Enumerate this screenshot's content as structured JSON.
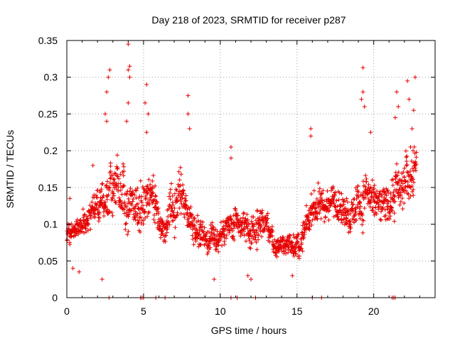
{
  "chart_data": {
    "type": "scatter",
    "title": "Day 218 of 2023, SRMTID for receiver p287",
    "xlabel": "GPS time / hours",
    "ylabel": "SRMTID / TECUs",
    "xlim": [
      0,
      24
    ],
    "ylim": [
      0,
      0.35
    ],
    "xticks": [
      0,
      5,
      10,
      15,
      20
    ],
    "yticks": [
      0,
      0.05,
      0.1,
      0.15,
      0.2,
      0.25,
      0.3,
      0.35
    ],
    "xtick_labels": [
      "0",
      "5",
      "10",
      "15",
      "20"
    ],
    "ytick_labels": [
      "0",
      "0.05",
      "0.1",
      "0.15",
      "0.2",
      "0.25",
      "0.3",
      "0.35"
    ],
    "grid": true,
    "marker": "+",
    "color": "#e60000",
    "envelope": {
      "hours": [
        0,
        0.5,
        1,
        1.5,
        2,
        2.5,
        3,
        3.5,
        4,
        4.5,
        5,
        5.5,
        6,
        6.5,
        7,
        7.5,
        8,
        8.5,
        9,
        9.5,
        10,
        10.5,
        11,
        11.5,
        12,
        12.5,
        13,
        13.5,
        14,
        14.5,
        15,
        15.5,
        16,
        16.5,
        17,
        17.5,
        18,
        18.5,
        19,
        19.5,
        20,
        20.5,
        21,
        21.5,
        22,
        22.5,
        22.8
      ],
      "center": [
        0.09,
        0.085,
        0.095,
        0.11,
        0.125,
        0.13,
        0.15,
        0.145,
        0.14,
        0.12,
        0.13,
        0.145,
        0.11,
        0.1,
        0.12,
        0.14,
        0.11,
        0.1,
        0.085,
        0.08,
        0.085,
        0.09,
        0.095,
        0.1,
        0.085,
        0.1,
        0.09,
        0.075,
        0.07,
        0.075,
        0.075,
        0.09,
        0.12,
        0.13,
        0.13,
        0.135,
        0.12,
        0.11,
        0.13,
        0.15,
        0.13,
        0.12,
        0.13,
        0.15,
        0.16,
        0.17,
        0.19
      ],
      "spread": [
        0.025,
        0.02,
        0.025,
        0.03,
        0.035,
        0.04,
        0.055,
        0.05,
        0.06,
        0.045,
        0.05,
        0.05,
        0.035,
        0.035,
        0.045,
        0.05,
        0.04,
        0.035,
        0.03,
        0.03,
        0.03,
        0.03,
        0.035,
        0.035,
        0.035,
        0.035,
        0.03,
        0.025,
        0.022,
        0.025,
        0.028,
        0.03,
        0.035,
        0.035,
        0.035,
        0.035,
        0.035,
        0.035,
        0.045,
        0.05,
        0.04,
        0.04,
        0.045,
        0.05,
        0.05,
        0.05,
        0.045
      ]
    },
    "spikes": [
      {
        "x": 0.2,
        "y": 0.135
      },
      {
        "x": 1.7,
        "y": 0.18
      },
      {
        "x": 2.3,
        "y": 0.025
      },
      {
        "x": 2.8,
        "y": 0.31
      },
      {
        "x": 2.7,
        "y": 0.3
      },
      {
        "x": 2.6,
        "y": 0.28
      },
      {
        "x": 2.5,
        "y": 0.25
      },
      {
        "x": 2.6,
        "y": 0.24
      },
      {
        "x": 4.0,
        "y": 0.345
      },
      {
        "x": 4.1,
        "y": 0.315
      },
      {
        "x": 4.0,
        "y": 0.31
      },
      {
        "x": 4.1,
        "y": 0.3
      },
      {
        "x": 4.0,
        "y": 0.265
      },
      {
        "x": 3.9,
        "y": 0.24
      },
      {
        "x": 5.2,
        "y": 0.29
      },
      {
        "x": 5.1,
        "y": 0.265
      },
      {
        "x": 5.3,
        "y": 0.25
      },
      {
        "x": 5.2,
        "y": 0.225
      },
      {
        "x": 7.9,
        "y": 0.275
      },
      {
        "x": 7.9,
        "y": 0.25
      },
      {
        "x": 8.0,
        "y": 0.23
      },
      {
        "x": 10.7,
        "y": 0.205
      },
      {
        "x": 10.7,
        "y": 0.19
      },
      {
        "x": 15.9,
        "y": 0.23
      },
      {
        "x": 15.9,
        "y": 0.22
      },
      {
        "x": 19.3,
        "y": 0.313
      },
      {
        "x": 19.3,
        "y": 0.28
      },
      {
        "x": 19.2,
        "y": 0.27
      },
      {
        "x": 19.4,
        "y": 0.26
      },
      {
        "x": 19.8,
        "y": 0.225
      },
      {
        "x": 21.4,
        "y": 0.245
      },
      {
        "x": 21.5,
        "y": 0.28
      },
      {
        "x": 21.6,
        "y": 0.26
      },
      {
        "x": 22.2,
        "y": 0.295
      },
      {
        "x": 22.3,
        "y": 0.27
      },
      {
        "x": 22.7,
        "y": 0.3
      },
      {
        "x": 22.6,
        "y": 0.255
      },
      {
        "x": 22.5,
        "y": 0.23
      },
      {
        "x": 22.4,
        "y": 0.205
      },
      {
        "x": 0.4,
        "y": 0.04
      },
      {
        "x": 0.8,
        "y": 0.035
      },
      {
        "x": 11.8,
        "y": 0.03
      },
      {
        "x": 12.0,
        "y": 0.025
      },
      {
        "x": 14.7,
        "y": 0.03
      },
      {
        "x": 9.6,
        "y": 0.025
      }
    ],
    "baseline_points": [
      2.75,
      4.8,
      4.9,
      5.0,
      5.8,
      6.4,
      10.7,
      11.1,
      12.3,
      16.0,
      16.6,
      21.2,
      21.3,
      21.4
    ],
    "sample_interval_hours": 0.0135,
    "random_seed": 287
  }
}
